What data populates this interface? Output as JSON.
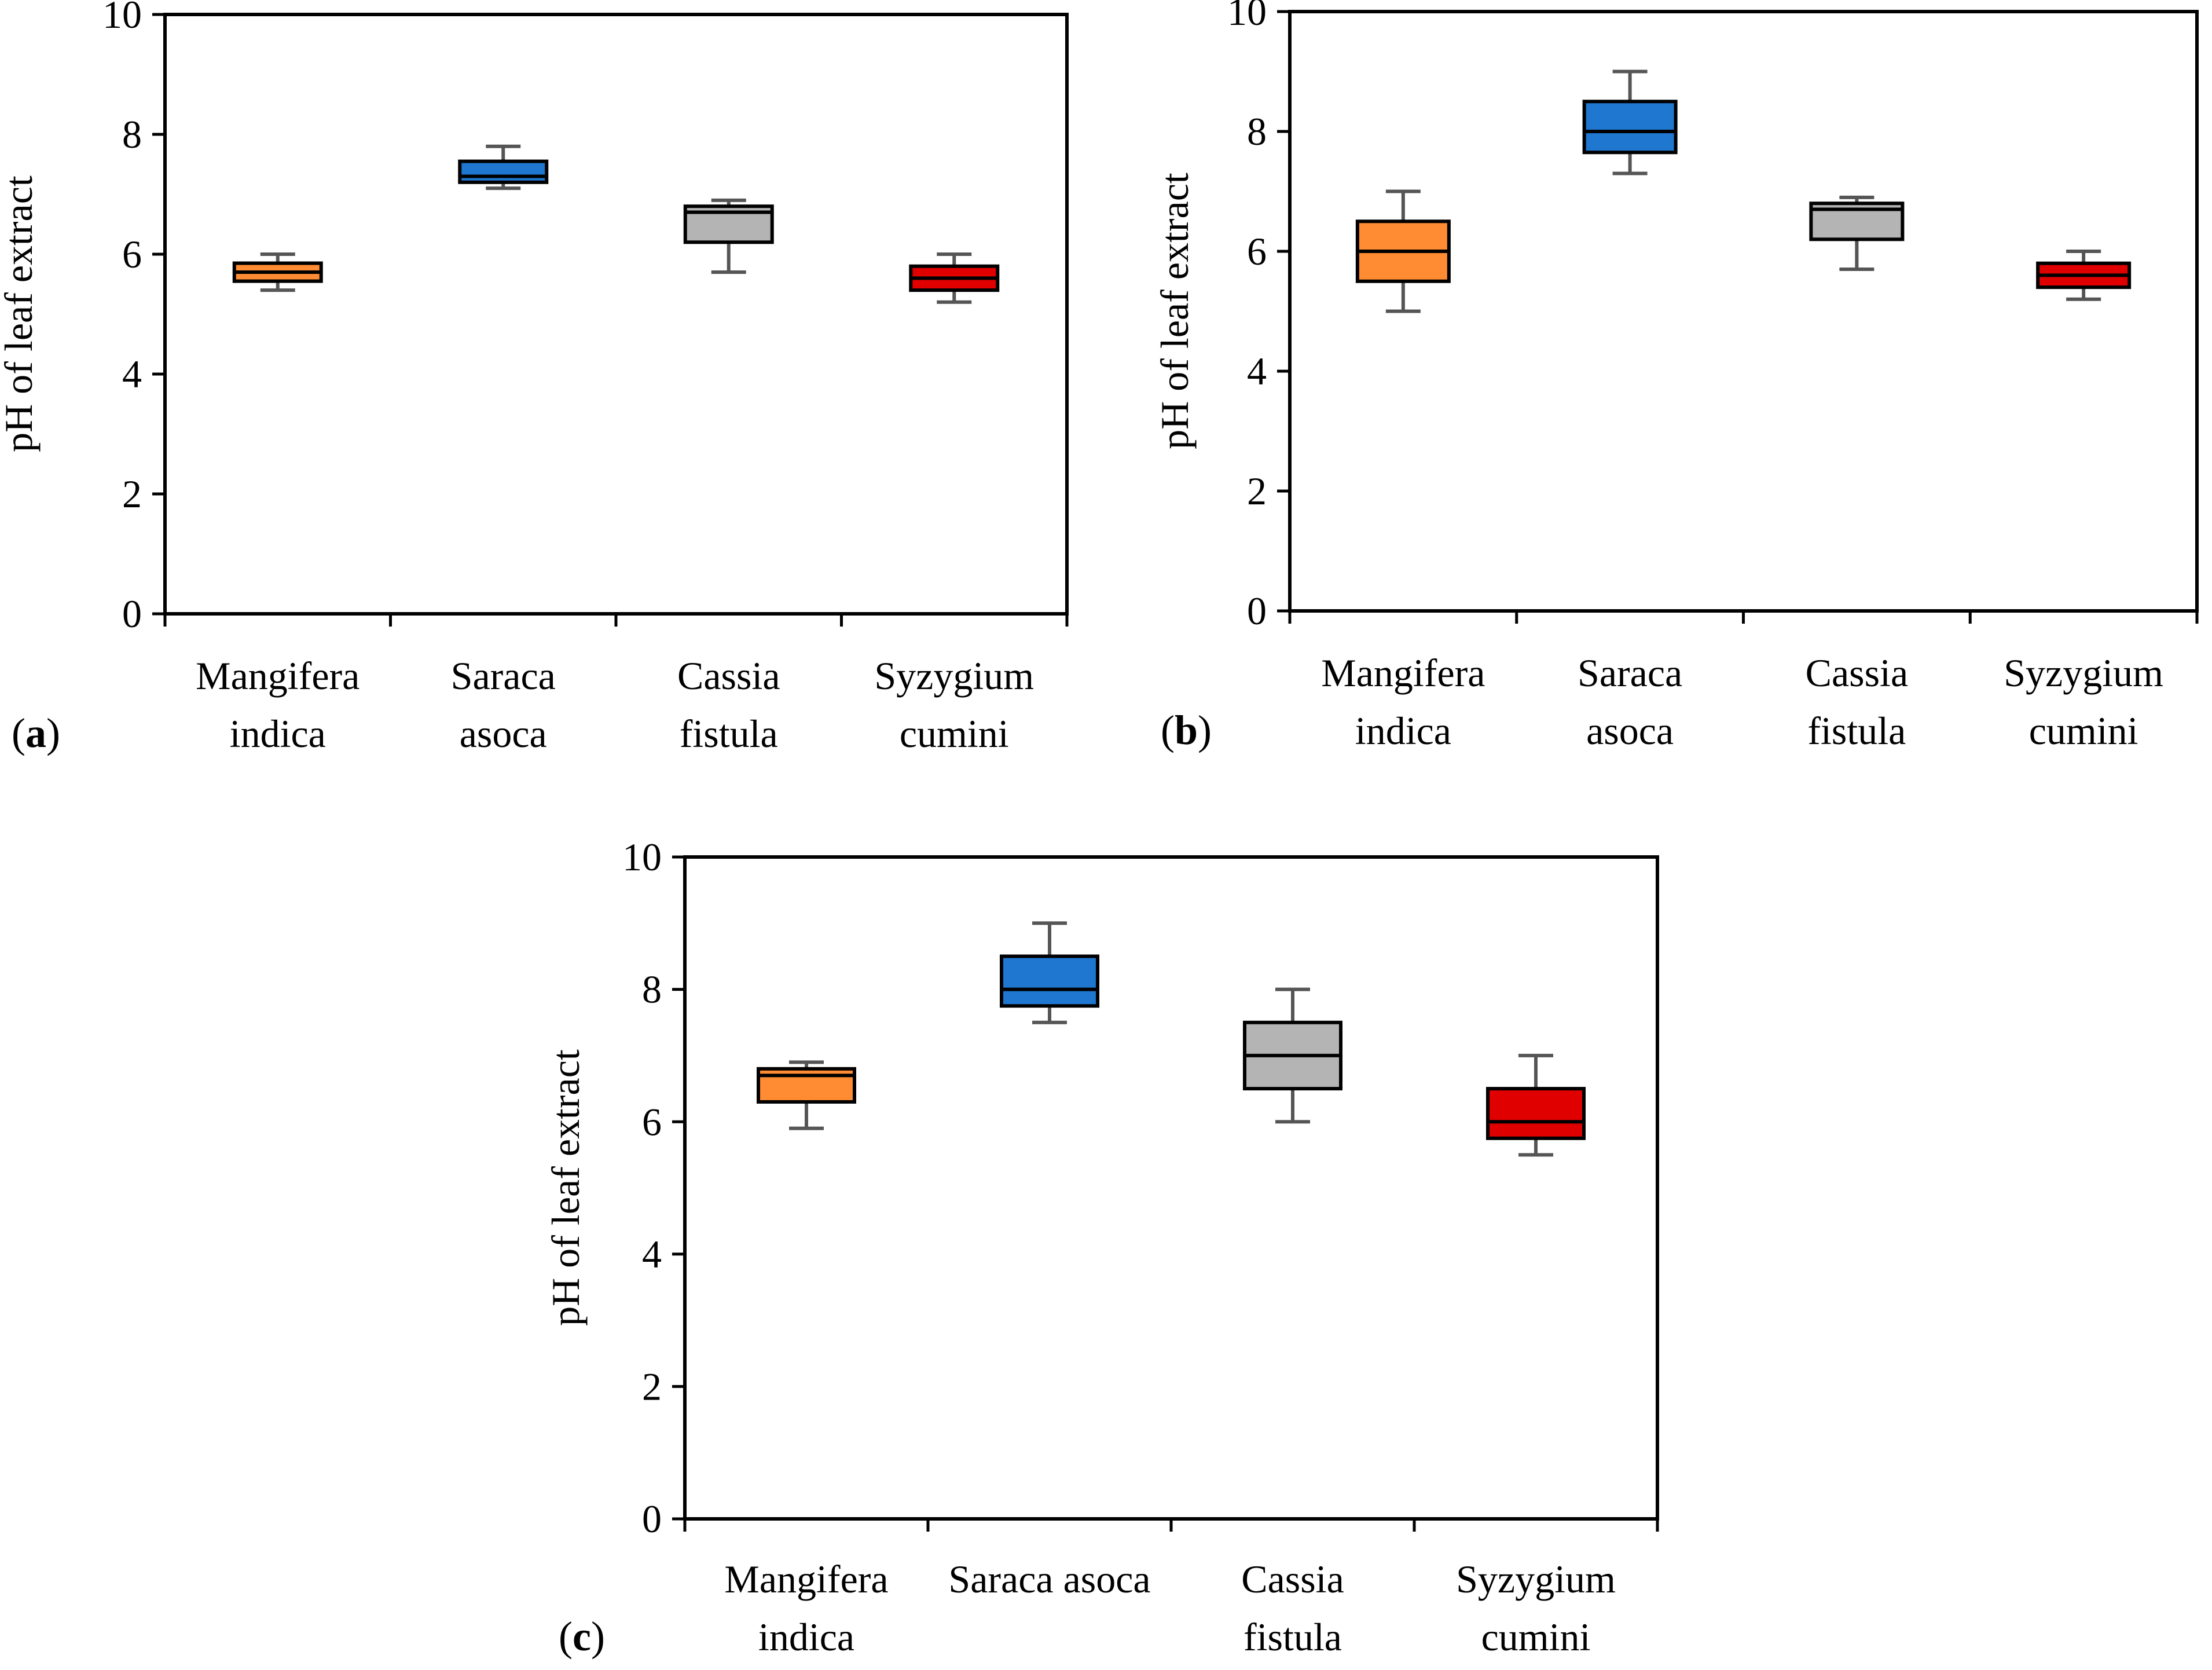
{
  "figure": {
    "panel_labels": [
      "a",
      "b",
      "c"
    ]
  },
  "chart_data": [
    {
      "panel": "a",
      "type": "box",
      "title": "",
      "xlabel": "",
      "ylabel": "pH of leaf extract",
      "ylim": [
        0,
        10
      ],
      "yticks": [
        0,
        2,
        4,
        6,
        8,
        10
      ],
      "grid": false,
      "categories": [
        [
          "Mangifera",
          "indica"
        ],
        [
          "Saraca",
          "asoca"
        ],
        [
          "Cassia",
          "fistula"
        ],
        [
          "Syzygium",
          "cumini"
        ]
      ],
      "colors": [
        "#FF8C32",
        "#1F77D0",
        "#B4B4B4",
        "#E00000"
      ],
      "boxes": [
        {
          "min": 5.4,
          "q1": 5.55,
          "median": 5.7,
          "q3": 5.85,
          "max": 6.0
        },
        {
          "min": 7.1,
          "q1": 7.2,
          "median": 7.3,
          "q3": 7.55,
          "max": 7.8
        },
        {
          "min": 5.7,
          "q1": 6.2,
          "median": 6.7,
          "q3": 6.8,
          "max": 6.9
        },
        {
          "min": 5.2,
          "q1": 5.4,
          "median": 5.6,
          "q3": 5.8,
          "max": 6.0
        }
      ]
    },
    {
      "panel": "b",
      "type": "box",
      "title": "",
      "xlabel": "",
      "ylabel": "pH of leaf extract",
      "ylim": [
        0,
        10
      ],
      "yticks": [
        0,
        2,
        4,
        6,
        8,
        10
      ],
      "grid": false,
      "categories": [
        [
          "Mangifera",
          "indica"
        ],
        [
          "Saraca",
          "asoca"
        ],
        [
          "Cassia",
          "fistula"
        ],
        [
          "Syzygium",
          "cumini"
        ]
      ],
      "colors": [
        "#FF8C32",
        "#1F77D0",
        "#B4B4B4",
        "#E00000"
      ],
      "boxes": [
        {
          "min": 5.0,
          "q1": 5.5,
          "median": 6.0,
          "q3": 6.5,
          "max": 7.0
        },
        {
          "min": 7.3,
          "q1": 7.65,
          "median": 8.0,
          "q3": 8.5,
          "max": 9.0
        },
        {
          "min": 5.7,
          "q1": 6.2,
          "median": 6.7,
          "q3": 6.8,
          "max": 6.9
        },
        {
          "min": 5.2,
          "q1": 5.4,
          "median": 5.6,
          "q3": 5.8,
          "max": 6.0
        }
      ]
    },
    {
      "panel": "c",
      "type": "box",
      "title": "",
      "xlabel": "",
      "ylabel": "pH of leaf extract",
      "ylim": [
        0,
        10
      ],
      "yticks": [
        0,
        2,
        4,
        6,
        8,
        10
      ],
      "grid": false,
      "categories": [
        [
          "Mangifera",
          "indica"
        ],
        [
          "Saraca asoca"
        ],
        [
          "Cassia",
          "fistula"
        ],
        [
          "Syzygium",
          "cumini"
        ]
      ],
      "colors": [
        "#FF8C32",
        "#1F77D0",
        "#B4B4B4",
        "#E00000"
      ],
      "boxes": [
        {
          "min": 5.9,
          "q1": 6.3,
          "median": 6.7,
          "q3": 6.8,
          "max": 6.9
        },
        {
          "min": 7.5,
          "q1": 7.75,
          "median": 8.0,
          "q3": 8.5,
          "max": 9.0
        },
        {
          "min": 6.0,
          "q1": 6.5,
          "median": 7.0,
          "q3": 7.5,
          "max": 8.0
        },
        {
          "min": 5.5,
          "q1": 5.75,
          "median": 6.0,
          "q3": 6.5,
          "max": 7.0
        }
      ]
    }
  ]
}
